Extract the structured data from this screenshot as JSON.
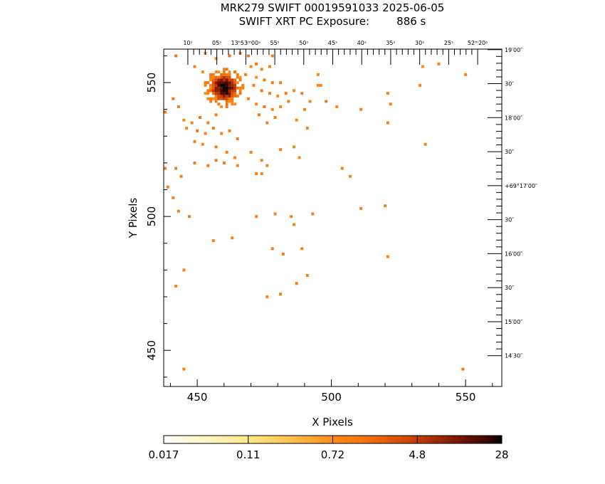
{
  "chart_data": {
    "type": "heatmap",
    "title": "MRK279 SWIFT 00019591033 2025-06-05",
    "subtitle": "SWIFT XRT PC Exposure:        886 s",
    "xlabel": "X Pixels",
    "ylabel": "Y Pixels",
    "xlim": [
      437.5,
      563.5
    ],
    "ylim": [
      436.5,
      562.5
    ],
    "x_ticks": [
      450,
      500,
      550
    ],
    "y_ticks": [
      450,
      500,
      550
    ],
    "ra_ticks": [
      {
        "x": 446.5,
        "label": "10ˢ"
      },
      {
        "x": 457.3,
        "label": "05ˢ"
      },
      {
        "x": 468.1,
        "label": "13ʰ53ᵐ00ˢ"
      },
      {
        "x": 478.9,
        "label": "55ˢ"
      },
      {
        "x": 489.7,
        "label": "50ˢ"
      },
      {
        "x": 500.5,
        "label": "45ˢ"
      },
      {
        "x": 511.3,
        "label": "40ˢ"
      },
      {
        "x": 522.1,
        "label": "35ˢ"
      },
      {
        "x": 532.9,
        "label": "30ˢ"
      },
      {
        "x": 543.7,
        "label": "25ˢ"
      },
      {
        "x": 554.5,
        "label": "52ᵐ20ˢ"
      }
    ],
    "dec_ticks": [
      {
        "y": 562.3,
        "label": "19′00″"
      },
      {
        "y": 549.6,
        "label": "30″"
      },
      {
        "y": 536.9,
        "label": "18′00″"
      },
      {
        "y": 524.2,
        "label": "30″"
      },
      {
        "y": 511.5,
        "label": "+69°17′00″"
      },
      {
        "y": 498.8,
        "label": "30″"
      },
      {
        "y": 486.1,
        "label": "16′00″"
      },
      {
        "y": 473.4,
        "label": "30″"
      },
      {
        "y": 460.7,
        "label": "15′00″"
      },
      {
        "y": 448.0,
        "label": "14′30″"
      }
    ],
    "colorbar": {
      "scale": "log",
      "tick_labels": [
        "0.017",
        "0.11",
        "0.72",
        "4.8",
        "28"
      ],
      "min": 0.017,
      "max": 28
    },
    "source": {
      "x": 460,
      "y": 548,
      "peak": 28
    },
    "events": [
      [
        442,
        560,
        1.2
      ],
      [
        453,
        561,
        0.9
      ],
      [
        457,
        559,
        1.0
      ],
      [
        462,
        560,
        1.5
      ],
      [
        466,
        561,
        1.1
      ],
      [
        469,
        560,
        1.3
      ],
      [
        449,
        556,
        1.0
      ],
      [
        452,
        554,
        0.8
      ],
      [
        455,
        552,
        1.1
      ],
      [
        470,
        556,
        0.9
      ],
      [
        472,
        557,
        1.4
      ],
      [
        474,
        555,
        1.0
      ],
      [
        477,
        556,
        0.9
      ],
      [
        468,
        553,
        1.2
      ],
      [
        472,
        552,
        0.8
      ],
      [
        475,
        551,
        1.1
      ],
      [
        478,
        550,
        1.2
      ],
      [
        481,
        550,
        0.9
      ],
      [
        471,
        549,
        1.0
      ],
      [
        474,
        547,
        1.3
      ],
      [
        477,
        546,
        1.0
      ],
      [
        480,
        545,
        0.8
      ],
      [
        483,
        546,
        1.1
      ],
      [
        486,
        547,
        0.9
      ],
      [
        469,
        544,
        1.1
      ],
      [
        472,
        542,
        0.9
      ],
      [
        475,
        541,
        1.2
      ],
      [
        478,
        540,
        1.0
      ],
      [
        481,
        541,
        0.8
      ],
      [
        484,
        543,
        1.0
      ],
      [
        489,
        546,
        1.1
      ],
      [
        492,
        543,
        0.9
      ],
      [
        490,
        540,
        1.0
      ],
      [
        487,
        536,
        0.8
      ],
      [
        479,
        537,
        1.1
      ],
      [
        476,
        535,
        1.0
      ],
      [
        473,
        538,
        1.2
      ],
      [
        495,
        553,
        0.9
      ],
      [
        496,
        549,
        1.0
      ],
      [
        498,
        543,
        1.1
      ],
      [
        502,
        541,
        0.9
      ],
      [
        511,
        540,
        1.0
      ],
      [
        521,
        546,
        1.1
      ],
      [
        522,
        542,
        0.9
      ],
      [
        521,
        535,
        1.0
      ],
      [
        534,
        556,
        0.8
      ],
      [
        540,
        557,
        1.0
      ],
      [
        550,
        553,
        1.0
      ],
      [
        441,
        544,
        1.2
      ],
      [
        443,
        541,
        1.0
      ],
      [
        438,
        539,
        1.1
      ],
      [
        445,
        536,
        0.9
      ],
      [
        448,
        535,
        1.0
      ],
      [
        451,
        537,
        1.3
      ],
      [
        454,
        535,
        1.1
      ],
      [
        457,
        538,
        1.0
      ],
      [
        446,
        533,
        0.9
      ],
      [
        450,
        532,
        1.2
      ],
      [
        453,
        531,
        1.0
      ],
      [
        456,
        533,
        1.1
      ],
      [
        459,
        531,
        0.9
      ],
      [
        462,
        532,
        1.0
      ],
      [
        465,
        529,
        1.1
      ],
      [
        449,
        528,
        1.0
      ],
      [
        452,
        527,
        0.9
      ],
      [
        457,
        526,
        1.2
      ],
      [
        461,
        524,
        1.0
      ],
      [
        464,
        522,
        0.9
      ],
      [
        470,
        524,
        1.1
      ],
      [
        474,
        521,
        1.0
      ],
      [
        476,
        519,
        0.9
      ],
      [
        481,
        525,
        1.1
      ],
      [
        486,
        526,
        1.0
      ],
      [
        488,
        522,
        0.8
      ],
      [
        491,
        533,
        1.0
      ],
      [
        442,
        518,
        1.0
      ],
      [
        444,
        515,
        0.9
      ],
      [
        449,
        520,
        1.1
      ],
      [
        454,
        519,
        1.0
      ],
      [
        457,
        521,
        1.2
      ],
      [
        460,
        520,
        1.0
      ],
      [
        465,
        519,
        0.9
      ],
      [
        472,
        516,
        1.1
      ],
      [
        474,
        516,
        1.0
      ],
      [
        504,
        518,
        1.0
      ],
      [
        507,
        515,
        0.9
      ],
      [
        438,
        518,
        1.1
      ],
      [
        439,
        511,
        1.0
      ],
      [
        441,
        507,
        0.9
      ],
      [
        443,
        502,
        1.0
      ],
      [
        447,
        500,
        1.1
      ],
      [
        456,
        491,
        1.0
      ],
      [
        463,
        492,
        0.9
      ],
      [
        472,
        500,
        1.0
      ],
      [
        479,
        501,
        0.9
      ],
      [
        485,
        500,
        1.1
      ],
      [
        486,
        497,
        1.0
      ],
      [
        489,
        488,
        1.0
      ],
      [
        482,
        486,
        0.9
      ],
      [
        478,
        488,
        1.1
      ],
      [
        493,
        501,
        1.0
      ],
      [
        511,
        503,
        0.9
      ],
      [
        520,
        504,
        1.0
      ],
      [
        521,
        485,
        0.9
      ],
      [
        491,
        478,
        1.0
      ],
      [
        487,
        475,
        1.1
      ],
      [
        476,
        470,
        0.9
      ],
      [
        481,
        471,
        1.0
      ],
      [
        445,
        480,
        1.0
      ],
      [
        442,
        474,
        0.9
      ],
      [
        445,
        443,
        1.0
      ],
      [
        549,
        443,
        1.1
      ],
      [
        535,
        527,
        0.9
      ],
      [
        533,
        549,
        1.0
      ],
      [
        495,
        549,
        0.8
      ],
      [
        478,
        560,
        1.0
      ]
    ]
  }
}
